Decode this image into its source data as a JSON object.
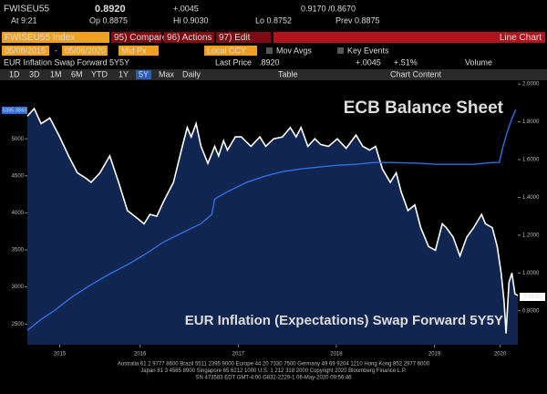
{
  "terminal": {
    "ticker": "FWISEU55",
    "last": "0.8920",
    "change": "+.0045",
    "range": "0.9170 /0.8670",
    "time": "At 9:21",
    "open": "Op 0.8875",
    "high": "Hi 0.9030",
    "low": "Lo 0.8752",
    "prev": "Prev 0.8875",
    "security": "FWISEU55 Index",
    "buttons": [
      "95) Compare",
      "96) Actions",
      "97) Edit"
    ],
    "view": "Line Chart",
    "start_date": "05/08/2015",
    "date_sep": "-",
    "end_date": "05/06/2020",
    "price_type": "Mid Px",
    "currency": "Local CCY",
    "options": [
      "Mov Avgs",
      "Key Events"
    ],
    "description": "EUR Inflation Swap Forward 5Y5Y",
    "last_price_label": "Last Price",
    "last_price": ".8920",
    "net_change": "+.0045",
    "pct_change": "+.51%",
    "volume_label": "Volume",
    "ranges": [
      "1D",
      "3D",
      "1M",
      "6M",
      "YTD",
      "1Y",
      "5Y",
      "Max"
    ],
    "frequency": "Daily",
    "table": "Table",
    "chart_content": "Chart Content",
    "footer": [
      "Australia 61 2 9777 8600  Brazil 5511 2395 9000  Europe 44 20 7330 7500  Germany 49 69 9204 1210  Hong Kong 852 2977 6000",
      "Japan 81 3 4565 8900        Singapore 65 6212 1000        U.S. 1 212 318 2000        Copyright 2020 Bloomberg Finance L.P.",
      "SN 473583 EDT  GMT-4:00 G832-2229-1 06-May-2020 09:56:46"
    ]
  },
  "chart_data": {
    "type": "line",
    "xlim": [
      2015.35,
      2020.35
    ],
    "xticks": [
      {
        "value": 2015.68,
        "label": "2015"
      },
      {
        "value": 2016.5,
        "label": "2016"
      },
      {
        "value": 2017.5,
        "label": "2017"
      },
      {
        "value": 2018.5,
        "label": "2018"
      },
      {
        "value": 2019.5,
        "label": "2019"
      },
      {
        "value": 2020.17,
        "label": "2020"
      }
    ],
    "ylim": [
      2220,
      5790
    ],
    "yticks": [
      2500,
      3000,
      3500,
      4000,
      4500,
      5000
    ],
    "y2lim": [
      0.62,
      2.02
    ],
    "y2ticks": [
      {
        "value": 0.8,
        "label": "0.8000"
      },
      {
        "value": 1.0,
        "label": "1.0000"
      },
      {
        "value": 1.2,
        "label": "1.2000"
      },
      {
        "value": 1.4,
        "label": "1.4000"
      },
      {
        "value": 1.6,
        "label": "1.6000"
      },
      {
        "value": 1.8,
        "label": "1.8000"
      },
      {
        "value": 2.0,
        "label": "2.0000"
      }
    ],
    "badges": [
      "5395.3843",
      "0.8920"
    ],
    "series": [
      {
        "name": "EUR Inflation (Expectations) Swap Forward 5Y5Y",
        "color": "#ffffff",
        "area_color": "#102550",
        "axis": "y2",
        "x": [
          2015.35,
          2015.42,
          2015.49,
          2015.58,
          2015.68,
          2015.77,
          2015.86,
          2015.95,
          2016.0,
          2016.09,
          2016.19,
          2016.28,
          2016.37,
          2016.47,
          2016.54,
          2016.6,
          2016.67,
          2016.74,
          2016.84,
          2016.93,
          2016.98,
          2017.02,
          2017.07,
          2017.12,
          2017.19,
          2017.26,
          2017.3,
          2017.35,
          2017.39,
          2017.47,
          2017.53,
          2017.63,
          2017.72,
          2017.78,
          2017.86,
          2017.95,
          2018.03,
          2018.09,
          2018.14,
          2018.21,
          2018.28,
          2018.34,
          2018.42,
          2018.51,
          2018.6,
          2018.7,
          2018.77,
          2018.84,
          2018.9,
          2018.97,
          2019.05,
          2019.11,
          2019.16,
          2019.23,
          2019.3,
          2019.36,
          2019.44,
          2019.51,
          2019.58,
          2019.62,
          2019.69,
          2019.76,
          2019.83,
          2019.9,
          2019.98,
          2020.02,
          2020.09,
          2020.14,
          2020.18,
          2020.21,
          2020.23,
          2020.26,
          2020.29,
          2020.32,
          2020.35
        ],
        "values": [
          1.83,
          1.87,
          1.79,
          1.82,
          1.72,
          1.62,
          1.53,
          1.5,
          1.48,
          1.53,
          1.62,
          1.48,
          1.33,
          1.29,
          1.26,
          1.31,
          1.3,
          1.38,
          1.48,
          1.67,
          1.77,
          1.72,
          1.79,
          1.67,
          1.58,
          1.67,
          1.62,
          1.7,
          1.65,
          1.72,
          1.72,
          1.67,
          1.72,
          1.67,
          1.71,
          1.72,
          1.77,
          1.72,
          1.77,
          1.67,
          1.71,
          1.68,
          1.67,
          1.71,
          1.66,
          1.73,
          1.67,
          1.65,
          1.67,
          1.55,
          1.48,
          1.53,
          1.43,
          1.33,
          1.36,
          1.24,
          1.14,
          1.12,
          1.26,
          1.24,
          1.19,
          1.09,
          1.19,
          1.24,
          1.31,
          1.26,
          1.24,
          1.14,
          1.0,
          0.85,
          0.68,
          0.95,
          1.0,
          0.89,
          0.88
        ]
      },
      {
        "name": "ECB Balance Sheet",
        "color": "#2f6fe4",
        "axis": "y",
        "x": [
          2015.35,
          2015.49,
          2015.63,
          2015.81,
          2016.0,
          2016.19,
          2016.37,
          2016.56,
          2016.74,
          2016.93,
          2017.12,
          2017.23,
          2017.26,
          2017.39,
          2017.58,
          2017.77,
          2017.95,
          2018.14,
          2018.32,
          2018.51,
          2018.7,
          2018.88,
          2019.07,
          2019.35,
          2019.53,
          2019.72,
          2019.9,
          2020.09,
          2020.16,
          2020.2,
          2020.24,
          2020.29,
          2020.33
        ],
        "values": [
          2414,
          2562,
          2685,
          2870,
          3030,
          3177,
          3301,
          3448,
          3608,
          3732,
          3855,
          3978,
          4187,
          4286,
          4409,
          4495,
          4557,
          4594,
          4618,
          4643,
          4655,
          4680,
          4680,
          4668,
          4655,
          4655,
          4655,
          4680,
          4680,
          4901,
          5086,
          5271,
          5394
        ]
      }
    ]
  }
}
